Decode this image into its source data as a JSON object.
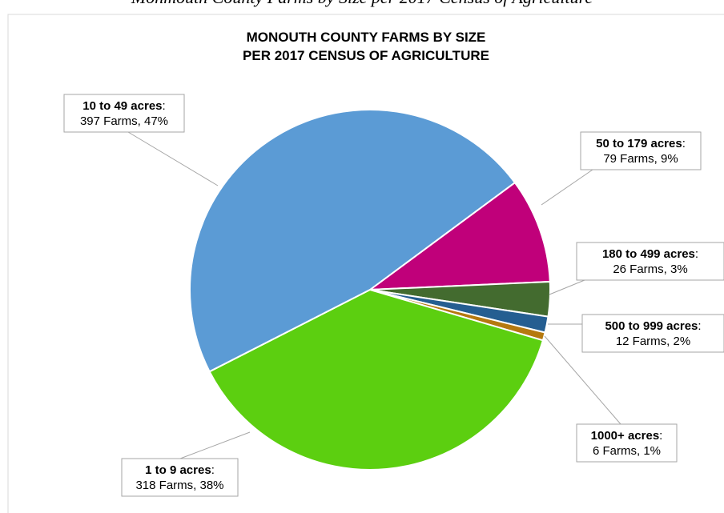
{
  "caption": "Monmouth County Farms by Size per 2017 Census of Agriculture",
  "chart_data": {
    "type": "pie",
    "title": [
      "MONOUTH COUNTY FARMS BY SIZE",
      "PER 2017 CENSUS OF AGRICULTURE"
    ],
    "categories": [
      "50 to 179 acres",
      "180 to 499 acres",
      "500 to 999 acres",
      "1000+ acres",
      "1 to 9 acres",
      "10 to 49 acres"
    ],
    "values": [
      79,
      26,
      12,
      6,
      318,
      397
    ],
    "value_labels": [
      "79 Farms, 9%",
      "26 Farms, 3%",
      "12 Farms, 2%",
      "6 Farms, 1%",
      "318 Farms, 38%",
      "397 Farms, 47%"
    ],
    "label_separator": ":",
    "colors": [
      "#c0007a",
      "#436b2f",
      "#255e91",
      "#b5790f",
      "#5ccf10",
      "#5b9bd5"
    ],
    "start_angle": -36.5
  }
}
